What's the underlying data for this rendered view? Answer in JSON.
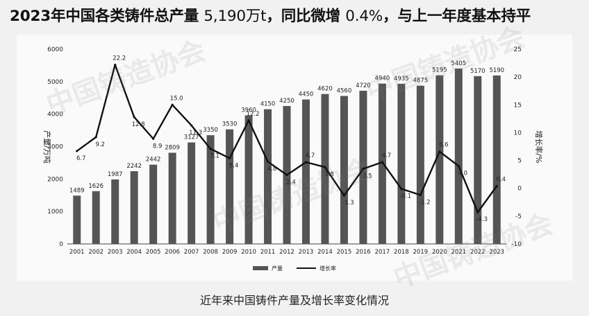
{
  "headline": {
    "part1": "2023年中国各类铸件总产量 ",
    "part2": "5,190万t",
    "part3": "，同比微增 ",
    "part4": "0.4%",
    "part5": "，与上一年度基本持平"
  },
  "caption": "近年来中国铸件产量及增长率变化情况",
  "watermark_text": "中国铸造协会",
  "colors": {
    "bar": "#555555",
    "line": "#111111",
    "background": "#f1f1f1"
  },
  "chart_data": {
    "type": "bar",
    "categories": [
      "2001",
      "2002",
      "2003",
      "2004",
      "2005",
      "2006",
      "2007",
      "2008",
      "2009",
      "2010",
      "2011",
      "2012",
      "2013",
      "2014",
      "2015",
      "2016",
      "2017",
      "2018",
      "2019",
      "2020",
      "2021",
      "2022",
      "2023"
    ],
    "series": [
      {
        "name": "产量",
        "type": "bar",
        "axis": "left",
        "values": [
          1489,
          1626,
          1987,
          2242,
          2442,
          2809,
          3127,
          3350,
          3530,
          3960,
          4150,
          4250,
          4450,
          4620,
          4560,
          4720,
          4940,
          4935,
          4875,
          5195,
          5405,
          5170,
          5190
        ],
        "labels": [
          "1489",
          "1626",
          "1987",
          "2242",
          "2442",
          "2809",
          "3127",
          "3350",
          "3530",
          "3960",
          "4150",
          "4250",
          "4450",
          "4620",
          "4560",
          "4720",
          "4940",
          "4935",
          "4875",
          "5195",
          "5405",
          "5170",
          "5190"
        ]
      },
      {
        "name": "增长率",
        "type": "line",
        "axis": "right",
        "values": [
          6.7,
          9.2,
          22.2,
          12.8,
          8.9,
          15.0,
          11.3,
          7.1,
          5.4,
          12.2,
          4.8,
          2.4,
          4.7,
          3.8,
          -1.3,
          3.5,
          4.7,
          -0.1,
          -1.2,
          6.6,
          4.0,
          -4.3,
          0.4
        ],
        "labels": [
          "6.7",
          "9.2",
          "22.2",
          "12.8",
          "8.9",
          "15.0",
          "11.3",
          "7.1",
          "5.4",
          "12.2",
          "4.8",
          "2.4",
          "4.7",
          "3.8",
          "-1.3",
          "3.5",
          "4.7",
          "-0.1",
          "-1.2",
          "6.6",
          "4.0",
          "-4.3",
          "0.4"
        ]
      }
    ],
    "ylabel_left": "产量/万吨",
    "ylabel_right": "增长率/%",
    "ylim_left": [
      0,
      6000
    ],
    "ylim_right": [
      -10,
      25
    ],
    "yticks_left": [
      "0",
      "1000",
      "2000",
      "3000",
      "4000",
      "5000",
      "6000"
    ],
    "yticks_right": [
      "-10",
      "-5",
      "0",
      "5",
      "10",
      "15",
      "20",
      "25"
    ],
    "legend": [
      "产量",
      "增长率"
    ],
    "legend_position": "bottom",
    "grid": false
  }
}
